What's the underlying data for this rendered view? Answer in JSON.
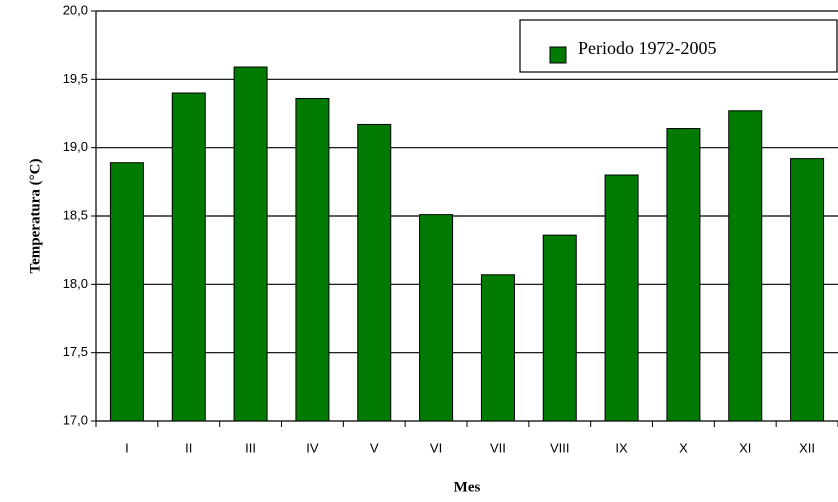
{
  "chart_data": {
    "type": "bar",
    "categories": [
      "I",
      "II",
      "III",
      "IV",
      "V",
      "VI",
      "VII",
      "VIII",
      "IX",
      "X",
      "XI",
      "XII"
    ],
    "series": [
      {
        "name": "Periodo 1972-2005",
        "color": "#007a00",
        "values": [
          18.89,
          19.4,
          19.59,
          19.36,
          19.17,
          18.51,
          18.07,
          18.36,
          18.8,
          19.14,
          19.27,
          18.92
        ]
      }
    ],
    "ylim": [
      17,
      20
    ],
    "yticks": [
      {
        "value": 17,
        "label": "17,0"
      },
      {
        "value": 17.5,
        "label": "17,5"
      },
      {
        "value": 18,
        "label": "18,0"
      },
      {
        "value": 18.5,
        "label": "18,5"
      },
      {
        "value": 19,
        "label": "19,0"
      },
      {
        "value": 19.5,
        "label": "19,5"
      },
      {
        "value": 20,
        "label": "20,0"
      }
    ],
    "xlabel": "Mes",
    "ylabel": "Temperatura (°C)",
    "grid": true,
    "legend": "upper right"
  }
}
